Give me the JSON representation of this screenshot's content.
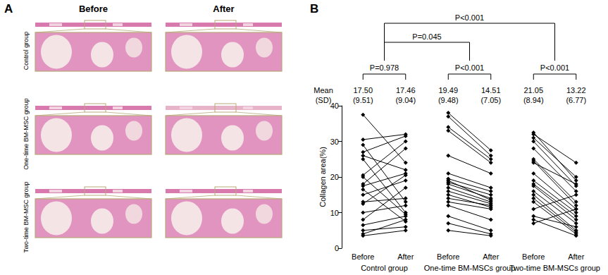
{
  "panel_a": {
    "label": "A",
    "columns": [
      "Before",
      "After"
    ],
    "rows": [
      "Control group",
      "One-time BM-MSC group",
      "Two-time BM-MSC group"
    ]
  },
  "chart_data": {
    "type": "line",
    "panel_label": "B",
    "categories": [
      "Before",
      "After",
      "Before",
      "After",
      "Before",
      "After"
    ],
    "y_label": "Collagen area(%)",
    "ylim": [
      0,
      40
    ],
    "yticks": [
      0,
      10,
      20,
      30,
      40
    ],
    "grid": false,
    "marker": "diamond",
    "color": "#000000",
    "groups": [
      {
        "label": "Control group",
        "pairs": [
          [
            37.5,
            24
          ],
          [
            30.5,
            32
          ],
          [
            29,
            13
          ],
          [
            27,
            31.5
          ],
          [
            26,
            22
          ],
          [
            25,
            10
          ],
          [
            20.5,
            30
          ],
          [
            20,
            9.5
          ],
          [
            18,
            28
          ],
          [
            17.5,
            21
          ],
          [
            16.5,
            7.5
          ],
          [
            15,
            19
          ],
          [
            13,
            14
          ],
          [
            12.5,
            20.5
          ],
          [
            10,
            12
          ],
          [
            8,
            17
          ],
          [
            6.5,
            9
          ],
          [
            5,
            6
          ],
          [
            4,
            8
          ],
          [
            3.5,
            5
          ]
        ]
      },
      {
        "label": "One-time BM-MSCs group",
        "pairs": [
          [
            38,
            27.5
          ],
          [
            37,
            26
          ],
          [
            34,
            25
          ],
          [
            33,
            24
          ],
          [
            26,
            21
          ],
          [
            21,
            17
          ],
          [
            19.5,
            16
          ],
          [
            19,
            13.5
          ],
          [
            18.5,
            15
          ],
          [
            18,
            14
          ],
          [
            17,
            13
          ],
          [
            16,
            12.5
          ],
          [
            15,
            11.5
          ],
          [
            14,
            12
          ],
          [
            13,
            11
          ],
          [
            12,
            8
          ],
          [
            9,
            5
          ],
          [
            7,
            4
          ],
          [
            5,
            3.5
          ]
        ]
      },
      {
        "label": "Two-time BM-MSCs group",
        "pairs": [
          [
            32.5,
            19
          ],
          [
            32,
            24
          ],
          [
            31,
            20
          ],
          [
            30,
            17.5
          ],
          [
            28,
            16
          ],
          [
            25,
            13
          ],
          [
            24.5,
            12
          ],
          [
            24,
            18
          ],
          [
            21,
            11
          ],
          [
            19,
            10
          ],
          [
            18,
            9
          ],
          [
            17.5,
            8
          ],
          [
            16,
            7
          ],
          [
            15,
            5
          ],
          [
            14,
            4.5
          ],
          [
            13,
            4
          ],
          [
            11,
            15
          ],
          [
            9,
            6
          ],
          [
            8,
            3.5
          ],
          [
            7,
            11
          ]
        ]
      }
    ],
    "mean_header": [
      "Mean",
      "(SD)"
    ],
    "means": [
      "17.50",
      "17.46",
      "19.49",
      "14.51",
      "21.05",
      "13.22"
    ],
    "sds": [
      "(9.51)",
      "(9.04)",
      "(9.48)",
      "(7.05)",
      "(8.94)",
      "(6.77)"
    ],
    "comparisons": [
      {
        "groups": [
          "Control group"
        ],
        "label": "P=0.978"
      },
      {
        "groups": [
          "One-time BM-MSCs group"
        ],
        "label": "P<0.001"
      },
      {
        "groups": [
          "Two-time BM-MSCs group"
        ],
        "label": "P<0.001"
      },
      {
        "groups": [
          "Control group",
          "One-time BM-MSCs group"
        ],
        "label": "P=0.045"
      },
      {
        "groups": [
          "Control group",
          "Two-time BM-MSCs group"
        ],
        "label": "P<0.001"
      }
    ]
  }
}
